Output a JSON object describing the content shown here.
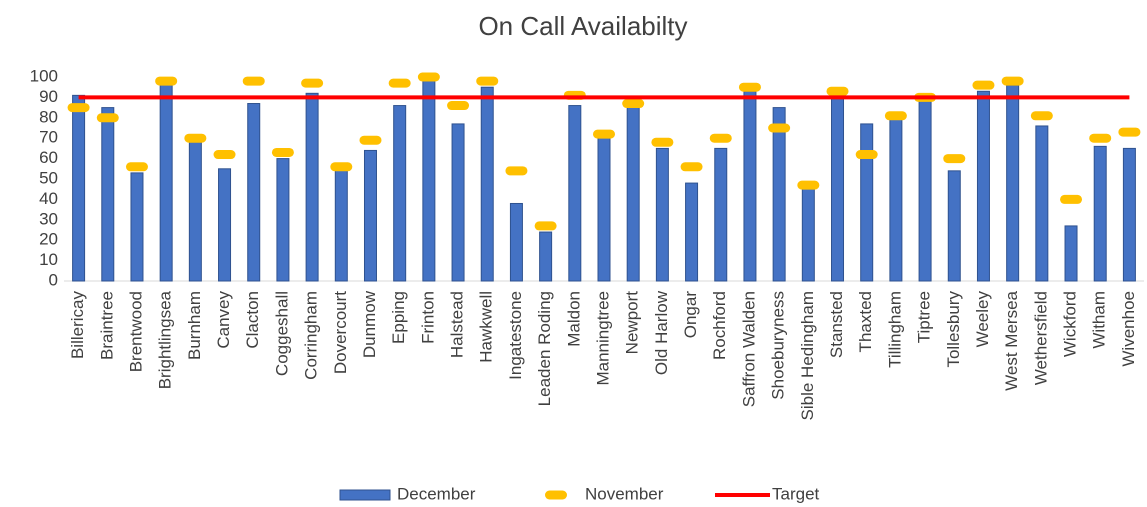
{
  "chart_data": {
    "type": "bar",
    "title": "On Call Availabilty",
    "categories": [
      "Billericay",
      "Braintree",
      "Brentwood",
      "Brightlingsea",
      "Burnham",
      "Canvey",
      "Clacton",
      "Coggeshall",
      "Corringham",
      "Dovercourt",
      "Dunmow",
      "Epping",
      "Frinton",
      "Halstead",
      "Hawkwell",
      "Ingatestone",
      "Leaden Roding",
      "Maldon",
      "Manningtree",
      "Newport",
      "Old Harlow",
      "Ongar",
      "Rochford",
      "Saffron Walden",
      "Shoeburyness",
      "Sible Hedingham",
      "Stansted",
      "Thaxted",
      "Tillingham",
      "Tiptree",
      "Tollesbury",
      "Weeley",
      "West Mersea",
      "Wethersfield",
      "Wickford",
      "Witham",
      "Wivenhoe"
    ],
    "series": [
      {
        "name": "December",
        "type": "bar",
        "color": "#4472c4",
        "values": [
          91,
          85,
          53,
          97,
          69,
          55,
          87,
          60,
          92,
          56,
          64,
          86,
          98,
          77,
          95,
          38,
          24,
          86,
          72,
          87,
          65,
          48,
          65,
          93,
          85,
          46,
          92,
          77,
          80,
          90,
          54,
          93,
          96,
          76,
          27,
          66,
          65
        ]
      },
      {
        "name": "November",
        "type": "marker",
        "color": "#ffc000",
        "values": [
          85,
          80,
          56,
          98,
          70,
          62,
          98,
          63,
          97,
          56,
          69,
          97,
          100,
          86,
          98,
          54,
          27,
          91,
          72,
          87,
          68,
          56,
          70,
          95,
          75,
          47,
          93,
          62,
          81,
          90,
          60,
          96,
          98,
          81,
          40,
          70,
          73
        ]
      },
      {
        "name": "Target",
        "type": "line",
        "color": "#ff0000",
        "values": [
          90,
          90,
          90,
          90,
          90,
          90,
          90,
          90,
          90,
          90,
          90,
          90,
          90,
          90,
          90,
          90,
          90,
          90,
          90,
          90,
          90,
          90,
          90,
          90,
          90,
          90,
          90,
          90,
          90,
          90,
          90,
          90,
          90,
          90,
          90,
          90,
          90
        ]
      }
    ],
    "ylim": [
      0,
      100
    ],
    "yticks": [
      0,
      10,
      20,
      30,
      40,
      50,
      60,
      70,
      80,
      90,
      100
    ],
    "legend": "bottom"
  }
}
